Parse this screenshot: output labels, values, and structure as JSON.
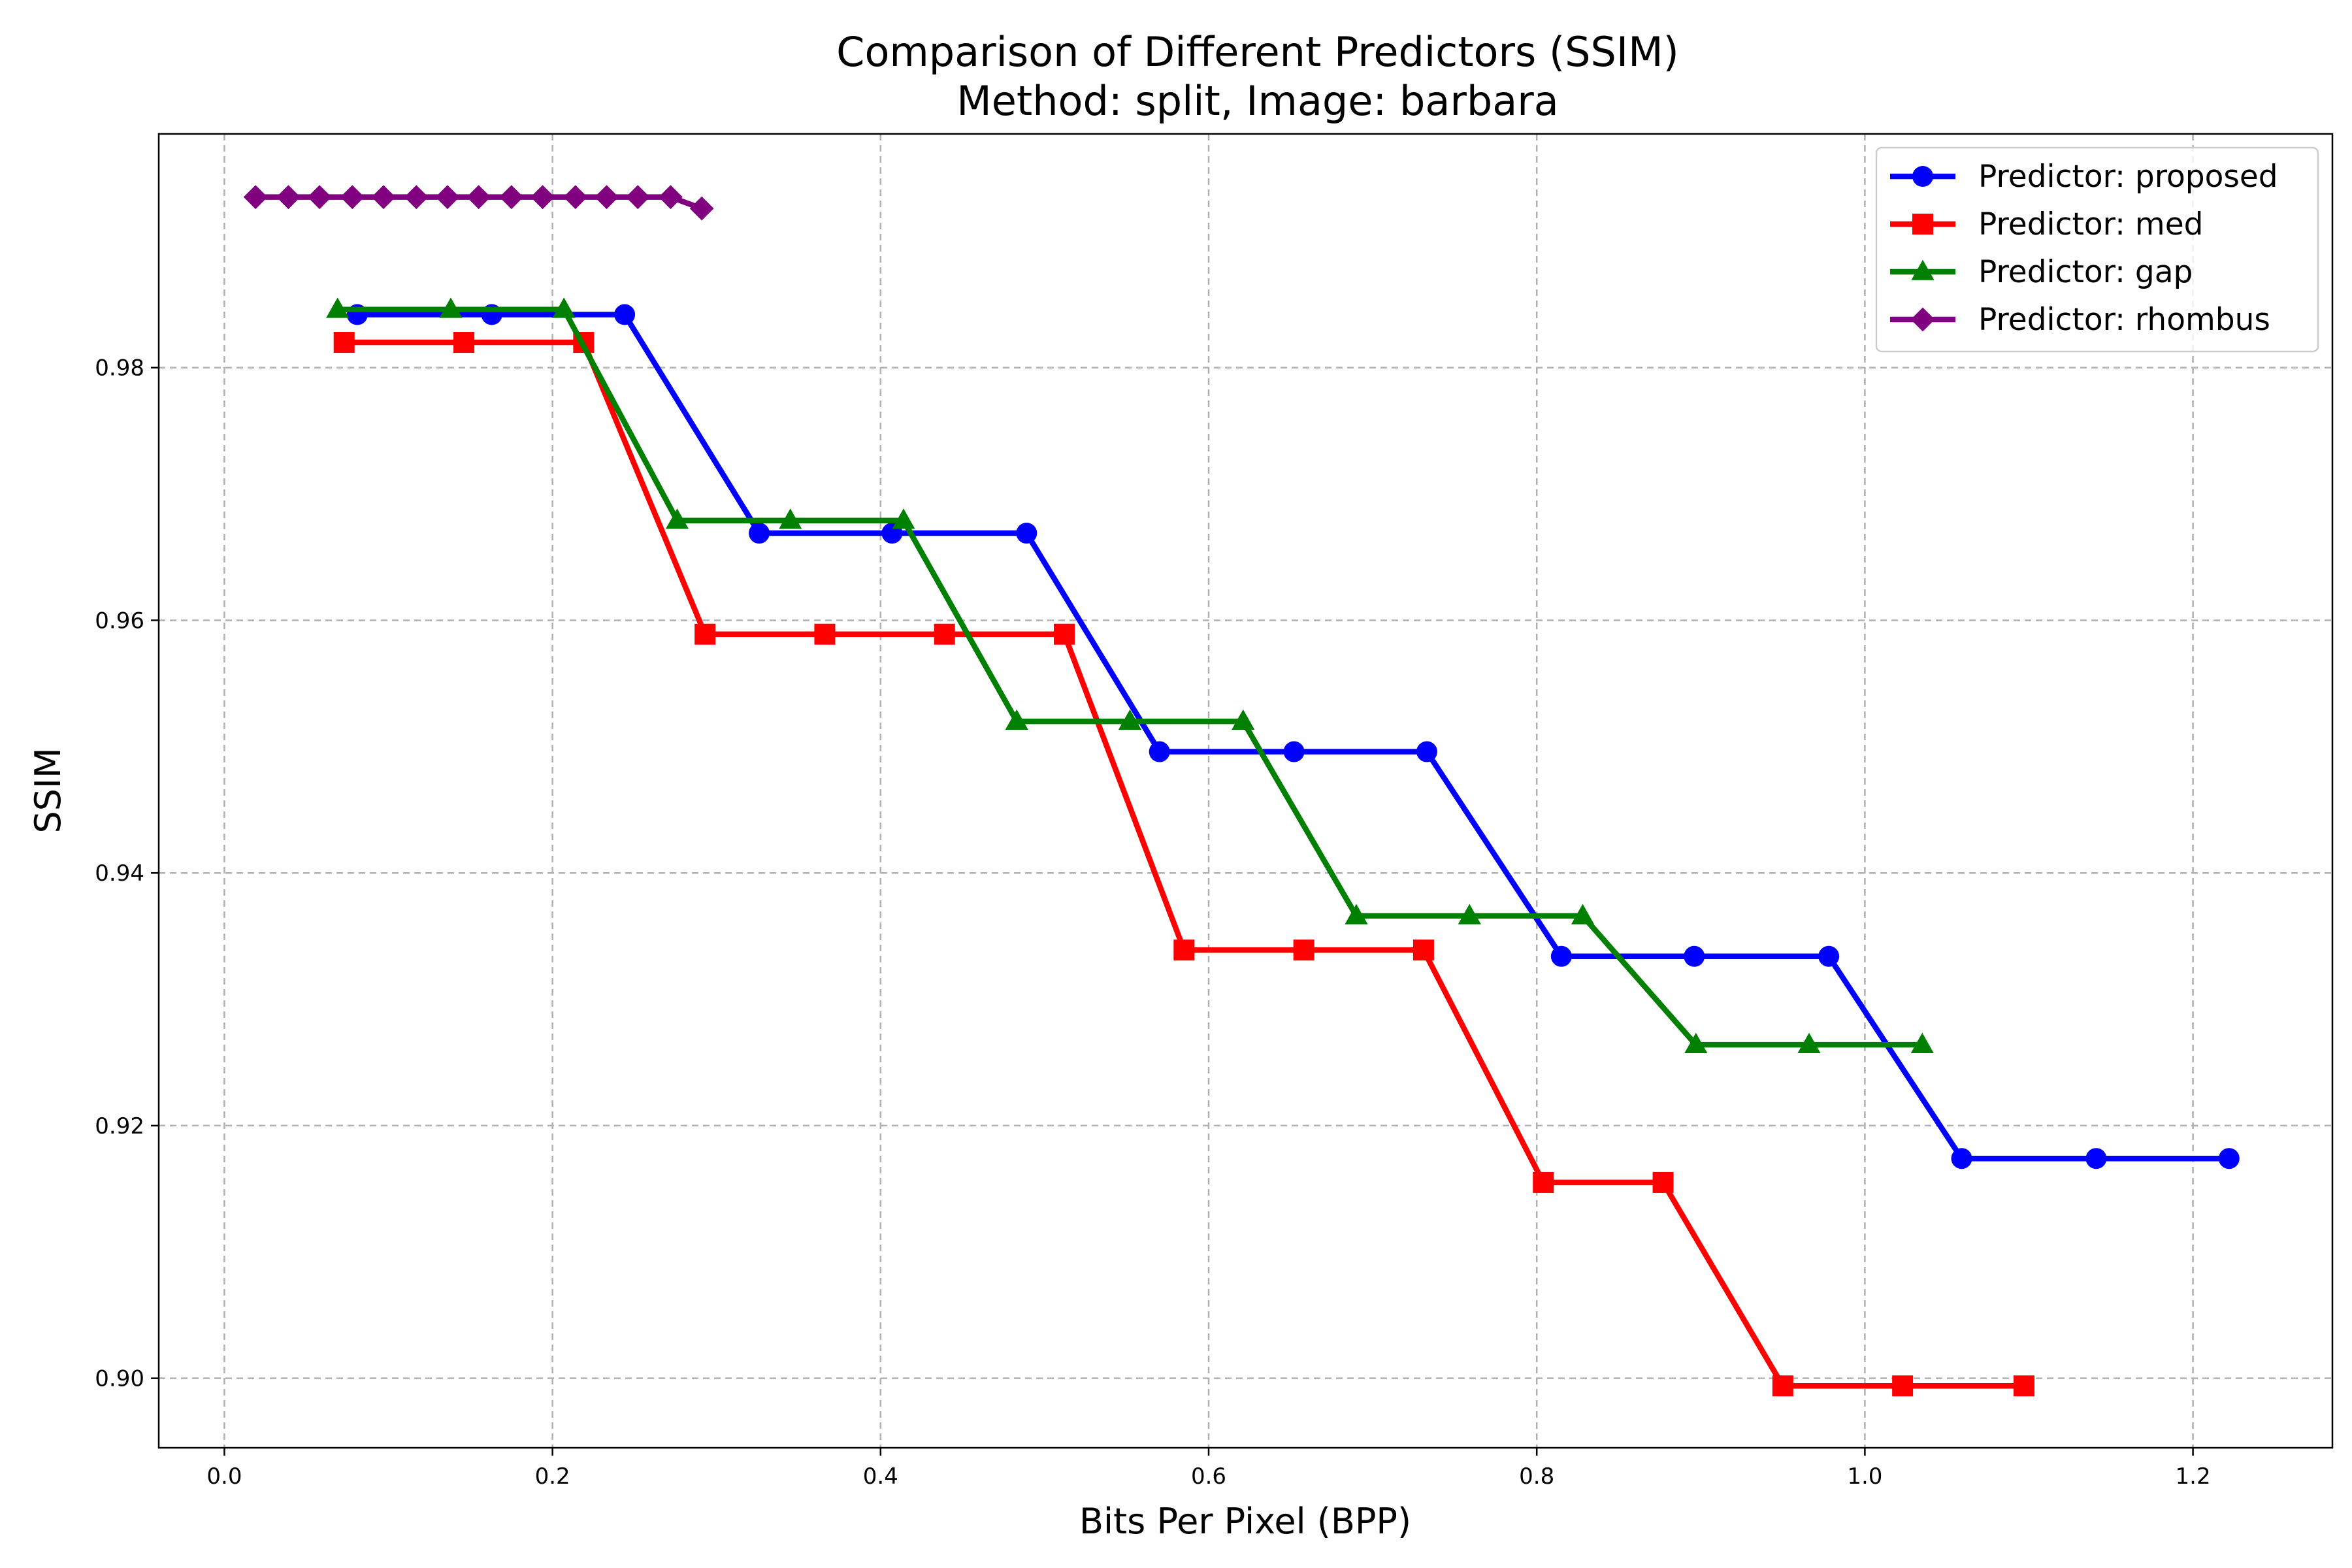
{
  "chart_data": {
    "type": "line",
    "title": [
      "Comparison of Different Predictors (SSIM)",
      "Method: split, Image: barbara"
    ],
    "xlabel": "Bits Per Pixel (BPP)",
    "ylabel": "SSIM",
    "xlim": [
      -0.04,
      1.285
    ],
    "ylim": [
      0.8945,
      0.9985
    ],
    "xticks": [
      0.0,
      0.2,
      0.4,
      0.6,
      0.8,
      1.0,
      1.2
    ],
    "xtick_labels": [
      "0.0",
      "0.2",
      "0.4",
      "0.6",
      "0.8",
      "1.0",
      "1.2"
    ],
    "yticks": [
      0.9,
      0.92,
      0.94,
      0.96,
      0.98
    ],
    "ytick_labels": [
      "0.90",
      "0.92",
      "0.94",
      "0.96",
      "0.98"
    ],
    "grid": true,
    "legend_position": "top-right",
    "series": [
      {
        "name": "Predictor: proposed",
        "color": "#0000ff",
        "marker": "circle",
        "x": [
          0.081,
          0.163,
          0.244,
          0.326,
          0.407,
          0.489,
          0.57,
          0.652,
          0.733,
          0.815,
          0.896,
          0.978,
          1.059,
          1.141,
          1.222
        ],
        "y": [
          0.9842,
          0.9842,
          0.9842,
          0.9669,
          0.9669,
          0.9669,
          0.9496,
          0.9496,
          0.9496,
          0.9334,
          0.9334,
          0.9334,
          0.9174,
          0.9174,
          0.9174
        ]
      },
      {
        "name": "Predictor: med",
        "color": "#ff0000",
        "marker": "square",
        "x": [
          0.073,
          0.146,
          0.219,
          0.293,
          0.366,
          0.439,
          0.512,
          0.585,
          0.658,
          0.731,
          0.804,
          0.877,
          0.95,
          1.023,
          1.097
        ],
        "y": [
          0.982,
          0.982,
          0.982,
          0.9589,
          0.9589,
          0.9589,
          0.9589,
          0.9339,
          0.9339,
          0.9339,
          0.9155,
          0.9155,
          0.8994,
          0.8994,
          0.8994
        ]
      },
      {
        "name": "Predictor: gap",
        "color": "#008000",
        "marker": "triangle",
        "x": [
          0.069,
          0.138,
          0.207,
          0.276,
          0.345,
          0.414,
          0.483,
          0.552,
          0.621,
          0.69,
          0.759,
          0.828,
          0.897,
          0.966,
          1.035
        ],
        "y": [
          0.9846,
          0.9846,
          0.9846,
          0.9679,
          0.9679,
          0.9679,
          0.952,
          0.952,
          0.952,
          0.9366,
          0.9366,
          0.9366,
          0.9264,
          0.9264,
          0.9264
        ]
      },
      {
        "name": "Predictor: rhombus",
        "color": "#800080",
        "marker": "diamond",
        "x": [
          0.019,
          0.039,
          0.058,
          0.078,
          0.097,
          0.117,
          0.136,
          0.155,
          0.175,
          0.194,
          0.214,
          0.233,
          0.252,
          0.272,
          0.291
        ],
        "y": [
          0.9935,
          0.9935,
          0.9935,
          0.9935,
          0.9935,
          0.9935,
          0.9935,
          0.9935,
          0.9935,
          0.9935,
          0.9935,
          0.9935,
          0.9935,
          0.9935,
          0.9926
        ]
      }
    ]
  }
}
